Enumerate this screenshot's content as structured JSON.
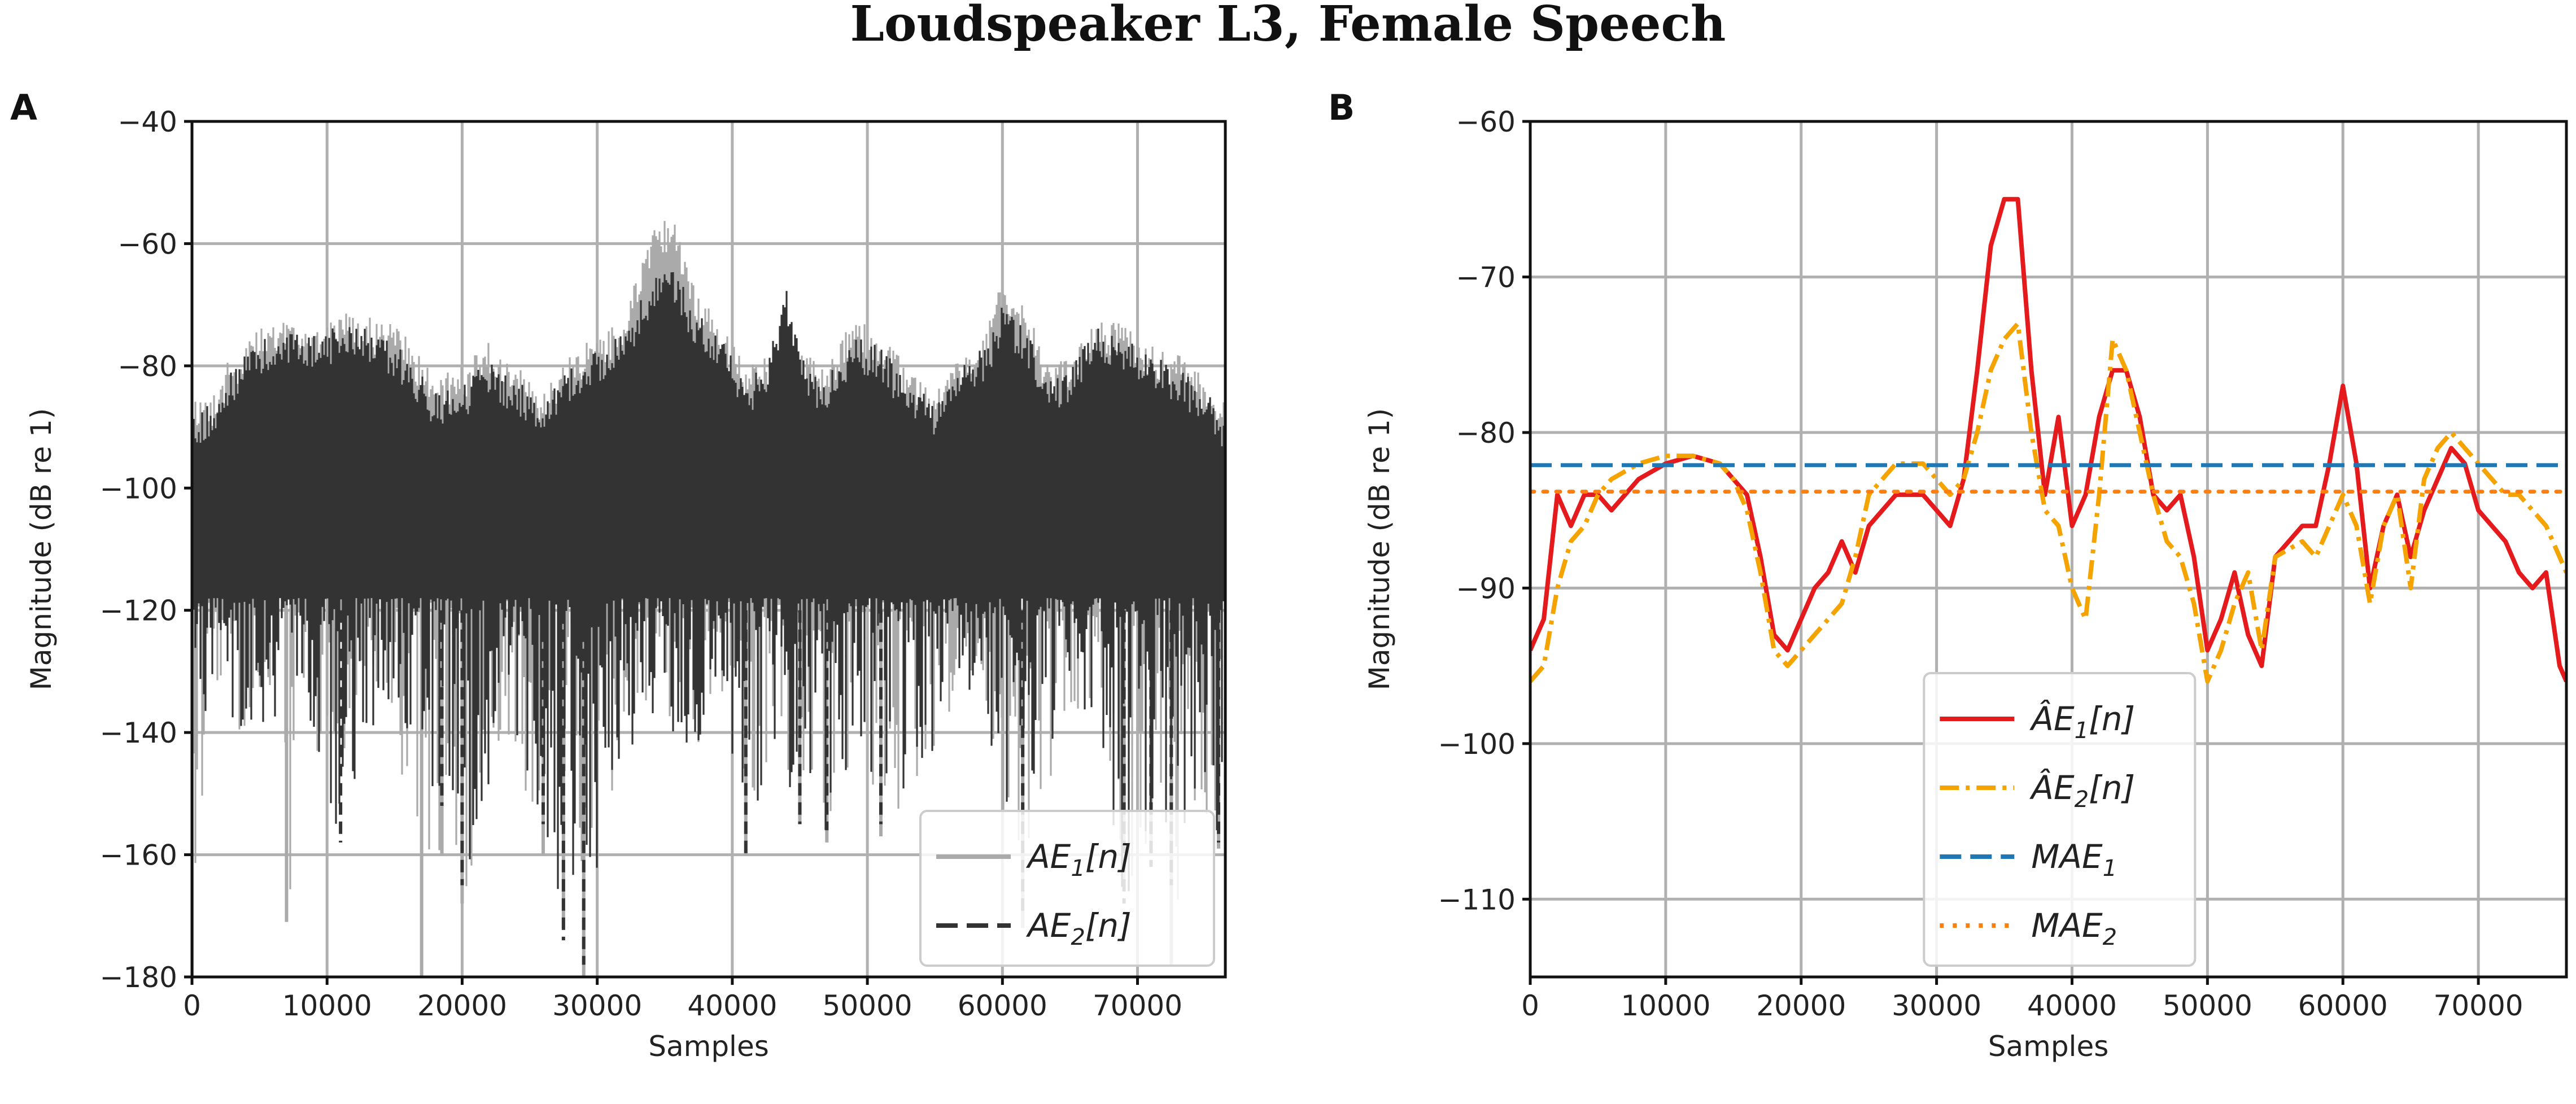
{
  "figure": {
    "title": "Loudspeaker L3, Female Speech"
  },
  "chart_data": [
    {
      "panel": "A",
      "type": "line",
      "xlabel": "Samples",
      "ylabel": "Magnitude (dB re 1)",
      "xlim": [
        0,
        76500
      ],
      "ylim": [
        -180,
        -40
      ],
      "xticks": [
        0,
        10000,
        20000,
        30000,
        40000,
        50000,
        60000,
        70000
      ],
      "yticks": [
        -180,
        -160,
        -140,
        -120,
        -100,
        -80,
        -60,
        -40
      ],
      "grid": true,
      "legend_position": "lower-right",
      "series": [
        {
          "name": "AE1[n]",
          "legend_main": "AE",
          "legend_sub": "1",
          "legend_tail": "[n]",
          "color": "#aaaaaa",
          "style": "solid",
          "upper_envelope": [
            [
              0,
              -85
            ],
            [
              1500,
              -84
            ],
            [
              3000,
              -78
            ],
            [
              5000,
              -74
            ],
            [
              7000,
              -72
            ],
            [
              9000,
              -73
            ],
            [
              11000,
              -71
            ],
            [
              13000,
              -72
            ],
            [
              15000,
              -73
            ],
            [
              16500,
              -77
            ],
            [
              18000,
              -82
            ],
            [
              20000,
              -80
            ],
            [
              22000,
              -76
            ],
            [
              24000,
              -80
            ],
            [
              26000,
              -84
            ],
            [
              28000,
              -78
            ],
            [
              30000,
              -75
            ],
            [
              32000,
              -72
            ],
            [
              34000,
              -58
            ],
            [
              35500,
              -55
            ],
            [
              37000,
              -66
            ],
            [
              39000,
              -72
            ],
            [
              41000,
              -80
            ],
            [
              42500,
              -78
            ],
            [
              44000,
              -72
            ],
            [
              45500,
              -78
            ],
            [
              47000,
              -80
            ],
            [
              49000,
              -72
            ],
            [
              51000,
              -75
            ],
            [
              53000,
              -80
            ],
            [
              55000,
              -84
            ],
            [
              57000,
              -78
            ],
            [
              59000,
              -73
            ],
            [
              60000,
              -65
            ],
            [
              62000,
              -72
            ],
            [
              63500,
              -80
            ],
            [
              65000,
              -78
            ],
            [
              67000,
              -72
            ],
            [
              69000,
              -73
            ],
            [
              71000,
              -76
            ],
            [
              73000,
              -78
            ],
            [
              75000,
              -82
            ],
            [
              76500,
              -86
            ]
          ],
          "lower_envelope": [
            [
              0,
              -180
            ],
            [
              1500,
              -150
            ],
            [
              3000,
              -140
            ],
            [
              5000,
              -138
            ],
            [
              7000,
              -171
            ],
            [
              9000,
              -145
            ],
            [
              11000,
              -150
            ],
            [
              13000,
              -140
            ],
            [
              15000,
              -142
            ],
            [
              17000,
              -182
            ],
            [
              18500,
              -160
            ],
            [
              20000,
              -168
            ],
            [
              22000,
              -150
            ],
            [
              24000,
              -145
            ],
            [
              26000,
              -160
            ],
            [
              27500,
              -172
            ],
            [
              29000,
              -182
            ],
            [
              31000,
              -150
            ],
            [
              33000,
              -140
            ],
            [
              35000,
              -138
            ],
            [
              37000,
              -145
            ],
            [
              39000,
              -132
            ],
            [
              41000,
              -160
            ],
            [
              43000,
              -140
            ],
            [
              45000,
              -155
            ],
            [
              47000,
              -158
            ],
            [
              49000,
              -142
            ],
            [
              51000,
              -157
            ],
            [
              53000,
              -150
            ],
            [
              55000,
              -145
            ],
            [
              57000,
              -130
            ],
            [
              59000,
              -140
            ],
            [
              61500,
              -172
            ],
            [
              63000,
              -150
            ],
            [
              65000,
              -140
            ],
            [
              67000,
              -135
            ],
            [
              69000,
              -165
            ],
            [
              71000,
              -160
            ],
            [
              72500,
              -178
            ],
            [
              74000,
              -150
            ],
            [
              76000,
              -159
            ]
          ]
        },
        {
          "name": "AE2[n]",
          "legend_main": "AE",
          "legend_sub": "2",
          "legend_tail": "[n]",
          "color": "#333333",
          "style": "dashed",
          "upper_envelope": [
            [
              0,
              -88
            ],
            [
              1500,
              -86
            ],
            [
              3000,
              -80
            ],
            [
              5000,
              -76
            ],
            [
              7000,
              -74
            ],
            [
              9000,
              -75
            ],
            [
              11000,
              -73
            ],
            [
              13000,
              -74
            ],
            [
              15000,
              -76
            ],
            [
              16500,
              -80
            ],
            [
              18000,
              -84
            ],
            [
              20000,
              -83
            ],
            [
              22000,
              -79
            ],
            [
              24000,
              -82
            ],
            [
              26000,
              -85
            ],
            [
              28000,
              -80
            ],
            [
              30000,
              -77
            ],
            [
              32000,
              -74
            ],
            [
              34000,
              -66
            ],
            [
              35500,
              -63
            ],
            [
              37000,
              -70
            ],
            [
              39000,
              -74
            ],
            [
              41000,
              -82
            ],
            [
              42500,
              -80
            ],
            [
              44000,
              -67
            ],
            [
              45500,
              -80
            ],
            [
              47000,
              -82
            ],
            [
              49000,
              -75
            ],
            [
              51000,
              -77
            ],
            [
              53000,
              -82
            ],
            [
              55000,
              -86
            ],
            [
              57000,
              -80
            ],
            [
              59000,
              -76
            ],
            [
              60000,
              -70
            ],
            [
              62000,
              -75
            ],
            [
              63500,
              -82
            ],
            [
              65000,
              -80
            ],
            [
              67000,
              -73
            ],
            [
              69000,
              -75
            ],
            [
              71000,
              -78
            ],
            [
              73000,
              -80
            ],
            [
              75000,
              -84
            ],
            [
              76500,
              -88
            ]
          ],
          "lower_envelope": [
            [
              0,
              -140
            ],
            [
              1500,
              -140
            ],
            [
              3000,
              -138
            ],
            [
              5000,
              -150
            ],
            [
              7000,
              -140
            ],
            [
              9000,
              -140
            ],
            [
              11000,
              -158
            ],
            [
              13000,
              -140
            ],
            [
              15000,
              -138
            ],
            [
              17000,
              -145
            ],
            [
              18500,
              -152
            ],
            [
              20000,
              -165
            ],
            [
              22000,
              -150
            ],
            [
              24000,
              -145
            ],
            [
              26000,
              -155
            ],
            [
              27500,
              -174
            ],
            [
              29000,
              -178
            ],
            [
              31000,
              -150
            ],
            [
              33000,
              -140
            ],
            [
              35000,
              -140
            ],
            [
              37000,
              -145
            ],
            [
              39000,
              -130
            ],
            [
              41000,
              -160
            ],
            [
              43000,
              -140
            ],
            [
              45000,
              -155
            ],
            [
              47000,
              -156
            ],
            [
              49000,
              -142
            ],
            [
              51000,
              -155
            ],
            [
              53000,
              -150
            ],
            [
              55000,
              -145
            ],
            [
              57000,
              -132
            ],
            [
              59000,
              -140
            ],
            [
              61500,
              -170
            ],
            [
              63000,
              -150
            ],
            [
              65000,
              -140
            ],
            [
              67000,
              -135
            ],
            [
              69000,
              -168
            ],
            [
              71000,
              -162
            ],
            [
              72500,
              -165
            ],
            [
              74000,
              -150
            ],
            [
              76000,
              -158
            ]
          ]
        }
      ]
    },
    {
      "panel": "B",
      "type": "line",
      "xlabel": "Samples",
      "ylabel": "Magnitude (dB re 1)",
      "xlim": [
        0,
        76500
      ],
      "ylim": [
        -115,
        -60
      ],
      "xticks": [
        0,
        10000,
        20000,
        30000,
        40000,
        50000,
        60000,
        70000
      ],
      "yticks": [
        -110,
        -100,
        -90,
        -80,
        -70,
        -60
      ],
      "grid": true,
      "legend_position": "lower-center",
      "series": [
        {
          "name": "ÂE1[n]",
          "legend_main": "ÂE",
          "legend_sub": "1",
          "legend_tail": "[n]",
          "color": "#e41a1c",
          "style": "solid",
          "x": [
            0,
            1000,
            2000,
            3000,
            4000,
            5000,
            6000,
            8000,
            10000,
            12000,
            14000,
            15000,
            16000,
            17000,
            18000,
            19000,
            20000,
            21000,
            22000,
            23000,
            24000,
            25000,
            27000,
            29000,
            31000,
            32000,
            33000,
            34000,
            35000,
            36000,
            37000,
            38000,
            39000,
            40000,
            41000,
            42000,
            43000,
            44000,
            45000,
            46000,
            47000,
            48000,
            49000,
            50000,
            51000,
            52000,
            53000,
            54000,
            55000,
            57000,
            58000,
            59000,
            60000,
            61000,
            62000,
            63000,
            64000,
            65000,
            66000,
            67000,
            68000,
            69000,
            70000,
            71000,
            72000,
            73000,
            74000,
            75000,
            76000,
            76500
          ],
          "y": [
            -94,
            -92,
            -84,
            -86,
            -84,
            -84,
            -85,
            -83,
            -82,
            -81.5,
            -82,
            -83,
            -84,
            -88,
            -93,
            -94,
            -92,
            -90,
            -89,
            -87,
            -89,
            -86,
            -84,
            -84,
            -86,
            -83,
            -76,
            -68,
            -65,
            -65,
            -76,
            -84,
            -79,
            -86,
            -84,
            -79,
            -76,
            -76,
            -79,
            -84,
            -85,
            -84,
            -88,
            -94,
            -92,
            -89,
            -93,
            -95,
            -88,
            -86,
            -86,
            -82,
            -77,
            -82,
            -90,
            -86,
            -84,
            -88,
            -85,
            -83,
            -81,
            -82,
            -85,
            -86,
            -87,
            -89,
            -90,
            -89,
            -95,
            -96
          ]
        },
        {
          "name": "ÂE2[n]",
          "legend_main": "ÂE",
          "legend_sub": "2",
          "legend_tail": "[n]",
          "color": "#f5a300",
          "style": "dashdot",
          "x": [
            0,
            1000,
            2000,
            3000,
            4000,
            5000,
            6000,
            8000,
            10000,
            12000,
            14000,
            15000,
            16000,
            17000,
            18000,
            19000,
            20000,
            21000,
            22000,
            23000,
            24000,
            25000,
            27000,
            29000,
            31000,
            32000,
            33000,
            34000,
            35000,
            36000,
            37000,
            38000,
            39000,
            40000,
            41000,
            42000,
            43000,
            44000,
            45000,
            46000,
            47000,
            48000,
            49000,
            50000,
            51000,
            52000,
            53000,
            54000,
            55000,
            57000,
            58000,
            59000,
            60000,
            61000,
            62000,
            63000,
            64000,
            65000,
            66000,
            67000,
            68000,
            69000,
            70000,
            71000,
            72000,
            73000,
            74000,
            75000,
            76000,
            76500
          ],
          "y": [
            -96,
            -95,
            -90,
            -87,
            -86,
            -84,
            -83,
            -82,
            -81.5,
            -81.5,
            -82,
            -83,
            -85,
            -89,
            -94,
            -95,
            -94,
            -93,
            -92,
            -91,
            -88,
            -84,
            -82,
            -82,
            -84,
            -83,
            -80,
            -76,
            -74,
            -73,
            -80,
            -85,
            -86,
            -90,
            -92,
            -84,
            -74,
            -76,
            -80,
            -84,
            -87,
            -88,
            -91,
            -96,
            -94,
            -91,
            -89,
            -94,
            -88,
            -87,
            -88,
            -86,
            -84,
            -86,
            -91,
            -86,
            -84,
            -90,
            -83,
            -81,
            -80,
            -81,
            -82,
            -83,
            -84,
            -84,
            -85,
            -86,
            -88,
            -89
          ]
        },
        {
          "name": "MAE1",
          "legend_main": "MAE",
          "legend_sub": "1",
          "legend_tail": "",
          "color": "#1f77b4",
          "style": "dashed",
          "value": -82.1
        },
        {
          "name": "MAE2",
          "legend_main": "MAE",
          "legend_sub": "2",
          "legend_tail": "",
          "color": "#ff7f0e",
          "style": "dotted",
          "value": -83.8
        }
      ]
    }
  ]
}
